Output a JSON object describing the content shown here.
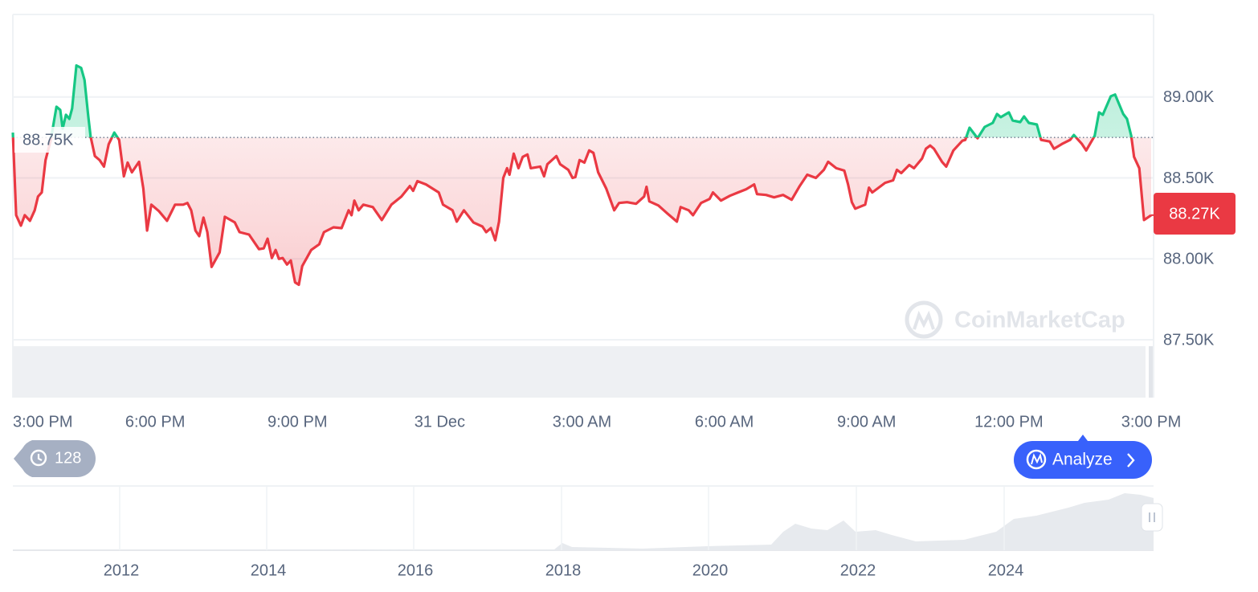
{
  "chart_data": {
    "type": "line",
    "up_color": "#16c784",
    "down_color": "#ea3943",
    "grid": true,
    "xlim": [
      0,
      24
    ],
    "xticks": [
      {
        "value": 0,
        "label": "3:00 PM"
      },
      {
        "value": 3,
        "label": "6:00 PM"
      },
      {
        "value": 6,
        "label": "9:00 PM"
      },
      {
        "value": 9,
        "label": "31 Dec"
      },
      {
        "value": 12,
        "label": "3:00 AM"
      },
      {
        "value": 15,
        "label": "6:00 AM"
      },
      {
        "value": 18,
        "label": "9:00 AM"
      },
      {
        "value": 21,
        "label": "12:00 PM"
      },
      {
        "value": 24,
        "label": "3:00 PM"
      }
    ],
    "ylim": [
      87500,
      89510
    ],
    "yticks": [
      {
        "value": 87500,
        "label": "87.50K"
      },
      {
        "value": 88000,
        "label": "88.00K"
      },
      {
        "value": 88500,
        "label": "88.50K"
      },
      {
        "value": 89000,
        "label": "89.00K"
      }
    ],
    "reference": {
      "value": 88750,
      "label": "88.75K"
    },
    "current": {
      "value": 88270,
      "label": "88.27K"
    },
    "x": [
      0,
      0.07,
      0.17,
      0.25,
      0.36,
      0.46,
      0.53,
      0.61,
      0.69,
      0.8,
      0.92,
      1,
      1.05,
      1.12,
      1.19,
      1.25,
      1.34,
      1.44,
      1.51,
      1.59,
      1.64,
      1.73,
      1.83,
      1.92,
      2.02,
      2.14,
      2.24,
      2.34,
      2.42,
      2.51,
      2.66,
      2.75,
      2.83,
      2.92,
      3.08,
      3.25,
      3.42,
      3.59,
      3.68,
      3.76,
      3.85,
      3.93,
      4.02,
      4.1,
      4.19,
      4.36,
      4.47,
      4.68,
      4.78,
      4.98,
      5.19,
      5.29,
      5.37,
      5.46,
      5.54,
      5.61,
      5.69,
      5.78,
      5.86,
      5.95,
      6.03,
      6.1,
      6.29,
      6.46,
      6.56,
      6.76,
      6.93,
      7.08,
      7.14,
      7.2,
      7.29,
      7.39,
      7.59,
      7.78,
      7.98,
      8.19,
      8.37,
      8.44,
      8.53,
      8.71,
      8.98,
      9.07,
      9.27,
      9.36,
      9.51,
      9.71,
      9.9,
      9.98,
      10.08,
      10.17,
      10.25,
      10.34,
      10.42,
      10.47,
      10.56,
      10.66,
      10.75,
      10.85,
      10.92,
      11.12,
      11.2,
      11.27,
      11.46,
      11.54,
      11.71,
      11.8,
      11.86,
      11.95,
      12.05,
      12.15,
      12.24,
      12.34,
      12.51,
      12.68,
      12.78,
      12.95,
      13.14,
      13.31,
      13.36,
      13.42,
      13.61,
      13.8,
      14,
      14.08,
      14.25,
      14.34,
      14.51,
      14.69,
      14.76,
      14.93,
      15.12,
      15.29,
      15.46,
      15.63,
      15.69,
      15.88,
      16.05,
      16.24,
      16.42,
      16.59,
      16.75,
      16.93,
      17.1,
      17.19,
      17.36,
      17.53,
      17.61,
      17.69,
      17.76,
      17.97,
      18.05,
      18.12,
      18.39,
      18.56,
      18.64,
      18.73,
      18.9,
      19,
      19.17,
      19.25,
      19.34,
      19.42,
      19.59,
      19.68,
      19.83,
      20.02,
      20.08,
      20.17,
      20.34,
      20.49,
      20.66,
      20.75,
      20.83,
      21,
      21.08,
      21.24,
      21.32,
      21.42,
      21.59,
      21.68,
      21.86,
      21.95,
      22.12,
      22.29,
      22.37,
      22.54,
      22.63,
      22.81,
      22.9,
      22.98,
      23.15,
      23.24,
      23.41,
      23.49,
      23.58,
      23.64,
      23.75,
      23.85,
      24
    ],
    "values": [
      88780,
      88270,
      88205,
      88270,
      88235,
      88300,
      88385,
      88410,
      88610,
      88735,
      88940,
      88920,
      88805,
      88890,
      88865,
      88930,
      89195,
      89180,
      89105,
      88880,
      88755,
      88635,
      88610,
      88570,
      88708,
      88780,
      88735,
      88510,
      88595,
      88535,
      88600,
      88435,
      88175,
      88335,
      88295,
      88235,
      88335,
      88335,
      88345,
      88300,
      88175,
      88140,
      88255,
      88165,
      87950,
      88040,
      88260,
      88225,
      88165,
      88150,
      88060,
      88065,
      88125,
      88005,
      88055,
      88000,
      88005,
      87965,
      87990,
      87855,
      87840,
      87955,
      88055,
      88090,
      88165,
      88195,
      88190,
      88300,
      88270,
      88360,
      88300,
      88335,
      88320,
      88240,
      88335,
      88385,
      88450,
      88420,
      88480,
      88460,
      88410,
      88335,
      88300,
      88230,
      88300,
      88225,
      88200,
      88165,
      88190,
      88115,
      88230,
      88500,
      88560,
      88520,
      88650,
      88560,
      88630,
      88645,
      88560,
      88570,
      88510,
      88585,
      88635,
      88585,
      88550,
      88500,
      88505,
      88610,
      88595,
      88670,
      88655,
      88535,
      88435,
      88300,
      88345,
      88350,
      88340,
      88385,
      88445,
      88355,
      88330,
      88280,
      88230,
      88320,
      88300,
      88270,
      88345,
      88370,
      88410,
      88360,
      88390,
      88410,
      88430,
      88460,
      88400,
      88395,
      88380,
      88395,
      88365,
      88450,
      88520,
      88500,
      88550,
      88600,
      88560,
      88545,
      88460,
      88350,
      88310,
      88335,
      88440,
      88410,
      88470,
      88485,
      88550,
      88530,
      88580,
      88560,
      88620,
      88680,
      88700,
      88680,
      88600,
      88570,
      88670,
      88730,
      88735,
      88810,
      88745,
      88815,
      88840,
      88895,
      88875,
      88905,
      88855,
      88845,
      88880,
      88840,
      88830,
      88735,
      88725,
      88680,
      88710,
      88735,
      88765,
      88710,
      88670,
      88760,
      88905,
      88890,
      89005,
      89015,
      88895,
      88865,
      88760,
      88630,
      88560,
      88240,
      88270
    ],
    "watermark": "CoinMarketCap",
    "history_count": "128",
    "analyze_button": "Analyze",
    "navigator_labels": [
      "2012",
      "2014",
      "2016",
      "2018",
      "2020",
      "2022",
      "2024"
    ]
  }
}
